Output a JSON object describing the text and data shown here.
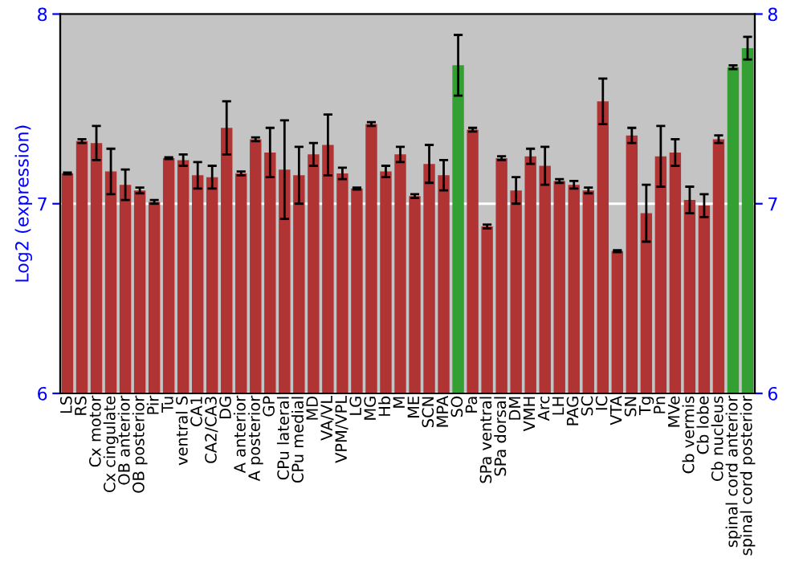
{
  "chart_data": {
    "type": "bar",
    "ylabel": "Log2 (expression)",
    "categories": [
      "LS",
      "RS",
      "Cx motor",
      "Cx cingulate",
      "OB anterior",
      "OB posterior",
      "Pir",
      "Tu",
      "ventral S",
      "CA1",
      "CA2/CA3",
      "DG",
      "A anterior",
      "A posterior",
      "GP",
      "CPu lateral",
      "CPu medial",
      "MD",
      "VA/VL",
      "VPM/VPL",
      "LG",
      "MG",
      "Hb",
      "M",
      "ME",
      "SCN",
      "MPA",
      "SO",
      "Pa",
      "SPa ventral",
      "SPa dorsal",
      "DM",
      "VMH",
      "Arc",
      "LH",
      "PAG",
      "SC",
      "IC",
      "VTA",
      "SN",
      "Tg",
      "Pn",
      "MVe",
      "Cb vermis",
      "Cb lobe",
      "Cb nucleus",
      "spinal cord anterior",
      "spinal cord posterior"
    ],
    "values": [
      7.16,
      7.33,
      7.32,
      7.17,
      7.1,
      7.07,
      7.01,
      7.24,
      7.23,
      7.15,
      7.14,
      7.4,
      7.16,
      7.34,
      7.27,
      7.18,
      7.15,
      7.26,
      7.31,
      7.16,
      7.08,
      7.42,
      7.17,
      7.26,
      7.04,
      7.21,
      7.15,
      7.73,
      7.39,
      6.88,
      7.24,
      7.07,
      7.25,
      7.2,
      7.12,
      7.1,
      7.07,
      7.54,
      6.75,
      7.36,
      6.95,
      7.25,
      7.27,
      7.02,
      6.99,
      7.34,
      7.72,
      7.82
    ],
    "errors": [
      0.005,
      0.01,
      0.09,
      0.12,
      0.08,
      0.015,
      0.01,
      0.005,
      0.03,
      0.07,
      0.06,
      0.14,
      0.01,
      0.01,
      0.13,
      0.26,
      0.15,
      0.06,
      0.16,
      0.03,
      0.005,
      0.01,
      0.03,
      0.04,
      0.01,
      0.1,
      0.08,
      0.16,
      0.01,
      0.01,
      0.01,
      0.07,
      0.04,
      0.1,
      0.01,
      0.02,
      0.015,
      0.12,
      0.005,
      0.04,
      0.15,
      0.16,
      0.07,
      0.07,
      0.06,
      0.02,
      0.01,
      0.06
    ],
    "colors": [
      "#b03434",
      "#b03434",
      "#b03434",
      "#b03434",
      "#b03434",
      "#b03434",
      "#b03434",
      "#b03434",
      "#b03434",
      "#b03434",
      "#b03434",
      "#b03434",
      "#b03434",
      "#b03434",
      "#b03434",
      "#b03434",
      "#b03434",
      "#b03434",
      "#b03434",
      "#b03434",
      "#b03434",
      "#b03434",
      "#b03434",
      "#b03434",
      "#b03434",
      "#b03434",
      "#b03434",
      "#34a034",
      "#b03434",
      "#b03434",
      "#b03434",
      "#b03434",
      "#b03434",
      "#b03434",
      "#b03434",
      "#b03434",
      "#b03434",
      "#b03434",
      "#b03434",
      "#b03434",
      "#b03434",
      "#b03434",
      "#b03434",
      "#b03434",
      "#b03434",
      "#b03434",
      "#34a034",
      "#34a034"
    ],
    "ylim": [
      6,
      8
    ],
    "yticks": [
      6,
      7,
      8
    ],
    "y2lim": [
      6,
      8
    ],
    "y2ticks": [
      6,
      7,
      8
    ],
    "grid": "y"
  }
}
